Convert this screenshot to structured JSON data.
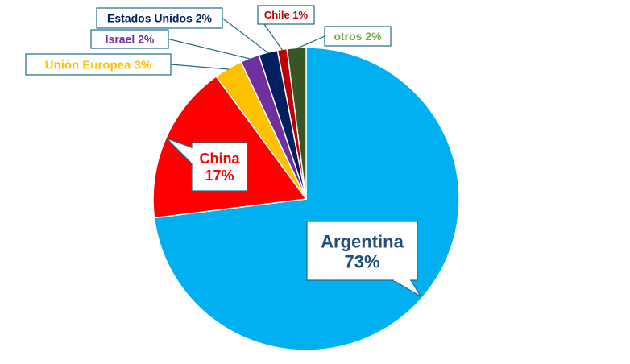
{
  "chart_data": {
    "type": "pie",
    "title": "",
    "slices": [
      {
        "name": "Argentina",
        "value": 73,
        "label_line1": "Argentina",
        "label_line2": "73%",
        "color": "#00B0F0",
        "text_color": "#1F4E79"
      },
      {
        "name": "China",
        "value": 17,
        "label_line1": "China",
        "label_line2": "17%",
        "color": "#FF0000",
        "text_color": "#FF0000"
      },
      {
        "name": "Unión Europea",
        "value": 3,
        "label_line1": "Unión Europea 3%",
        "label_line2": "",
        "color": "#FFC000",
        "text_color": "#FFC000"
      },
      {
        "name": "Israel",
        "value": 2,
        "label_line1": "Israel 2%",
        "label_line2": "",
        "color": "#7030A0",
        "text_color": "#7030A0"
      },
      {
        "name": "Estados Unidos",
        "value": 2,
        "label_line1": "Estados Unidos 2%",
        "label_line2": "",
        "color": "#002060",
        "text_color": "#002060"
      },
      {
        "name": "Chile",
        "value": 1,
        "label_line1": "Chile 1%",
        "label_line2": "",
        "color": "#C00000",
        "text_color": "#C00000"
      },
      {
        "name": "otros",
        "value": 2,
        "label_line1": "otros 2%",
        "label_line2": "",
        "color": "#375623",
        "text_color": "#70AD47"
      }
    ],
    "legend": "none",
    "label_border_color": "#1F6B8A"
  }
}
